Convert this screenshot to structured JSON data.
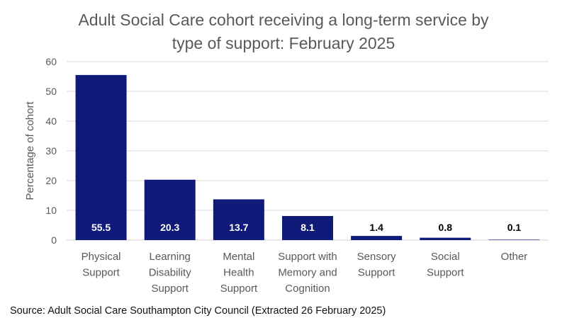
{
  "chart_data": {
    "type": "bar",
    "title_lines": [
      "Adult Social Care cohort receiving a long-term service by",
      "type of support: February 2025"
    ],
    "ylabel": "Percentage of cohort",
    "xlabel": "",
    "ylim": [
      0,
      60
    ],
    "yticks": [
      0,
      10,
      20,
      30,
      40,
      50,
      60
    ],
    "grid": true,
    "legend": "none",
    "categories": [
      [
        "Physical",
        "Support"
      ],
      [
        "Learning",
        "Disability",
        "Support"
      ],
      [
        "Mental",
        "Health",
        "Support"
      ],
      [
        "Support with",
        "Memory and",
        "Cognition"
      ],
      [
        "Sensory",
        "Support"
      ],
      [
        "Social",
        "Support"
      ],
      [
        "Other"
      ]
    ],
    "values": [
      55.5,
      20.3,
      13.7,
      8.1,
      1.4,
      0.8,
      0.1
    ],
    "data_labels": [
      "55.5",
      "20.3",
      "13.7",
      "8.1",
      "1.4",
      "0.8",
      "0.1"
    ]
  },
  "colors": {
    "bar": "#101a78",
    "grid": "#d9d9d9",
    "axis_text": "#595959",
    "label_inside": "#ffffff",
    "label_outside": "#000000"
  },
  "source": "Source: Adult Social Care Southampton City Council (Extracted 26 February 2025)"
}
